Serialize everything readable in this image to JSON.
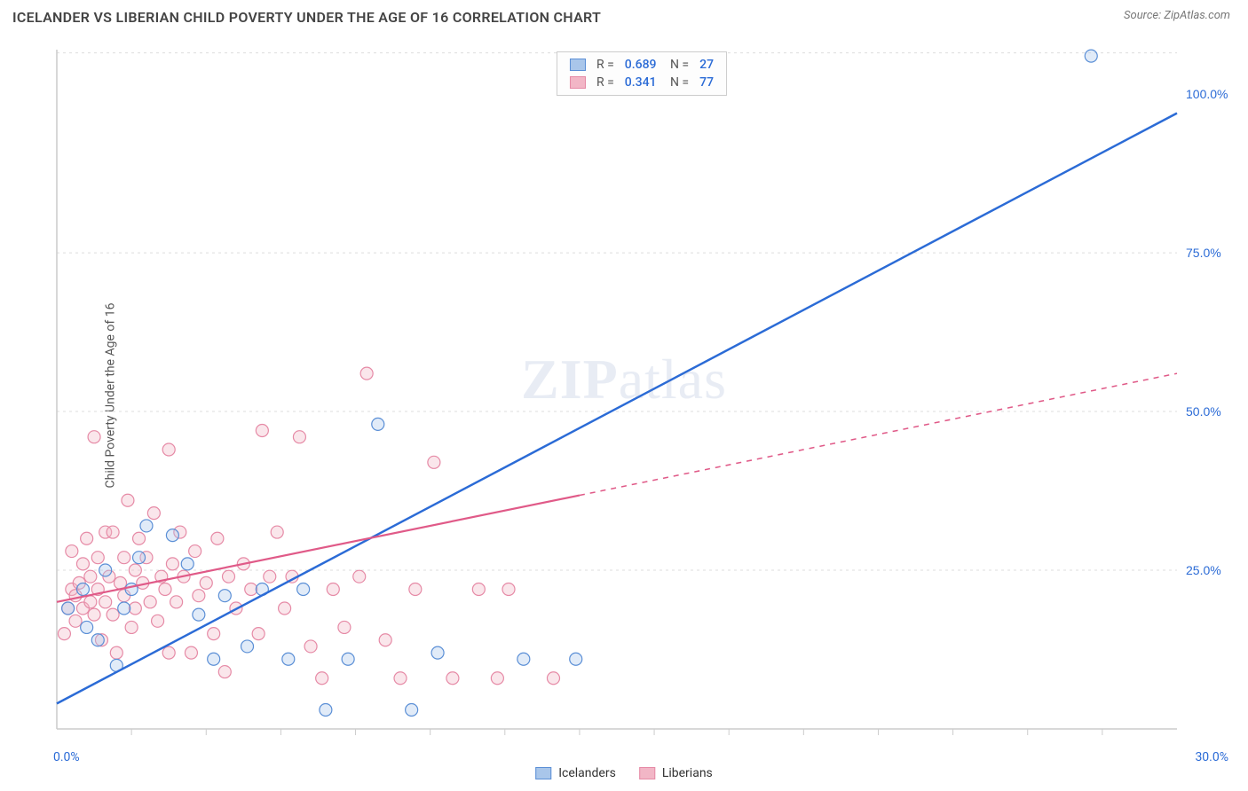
{
  "header": {
    "title": "ICELANDER VS LIBERIAN CHILD POVERTY UNDER THE AGE OF 16 CORRELATION CHART",
    "source": "Source: ZipAtlas.com"
  },
  "ylabel": "Child Poverty Under the Age of 16",
  "watermark": "ZIPatlas",
  "chart": {
    "type": "scatter",
    "xlim": [
      0,
      30
    ],
    "ylim": [
      0,
      107
    ],
    "xtick_minor": [
      2,
      4,
      6,
      8,
      10,
      12,
      14,
      16,
      18,
      20,
      22,
      24,
      26,
      28
    ],
    "xtick_labels": [
      {
        "v": 0,
        "label": "0.0%"
      },
      {
        "v": 30,
        "label": "30.0%"
      }
    ],
    "ytick_labels": [
      {
        "v": 25,
        "label": "25.0%"
      },
      {
        "v": 50,
        "label": "50.0%"
      },
      {
        "v": 75,
        "label": "75.0%"
      },
      {
        "v": 100,
        "label": "100.0%"
      }
    ],
    "gridlines_y": [
      25,
      50,
      75,
      106.5
    ],
    "background_color": "#ffffff",
    "grid_color": "#dddddd",
    "axis_color": "#cccccc",
    "marker_radius": 7,
    "marker_stroke_width": 1.2,
    "marker_fill_opacity": 0.35,
    "series": [
      {
        "name": "Icelanders",
        "color_stroke": "#5b8fd6",
        "color_fill": "#a9c6ea",
        "trend": {
          "x1": 0,
          "y1": 4,
          "x2": 30,
          "y2": 97,
          "stroke": "#2b6bd6",
          "width": 2.5,
          "solid_until_x": 30
        },
        "stats": {
          "R": "0.689",
          "N": "27"
        },
        "points": [
          [
            0.3,
            19
          ],
          [
            0.7,
            22
          ],
          [
            0.8,
            16
          ],
          [
            1.1,
            14
          ],
          [
            1.3,
            25
          ],
          [
            1.6,
            10
          ],
          [
            1.8,
            19
          ],
          [
            2.2,
            27
          ],
          [
            2.4,
            32
          ],
          [
            2.0,
            22
          ],
          [
            3.1,
            30.5
          ],
          [
            3.5,
            26
          ],
          [
            3.8,
            18
          ],
          [
            4.2,
            11
          ],
          [
            4.5,
            21
          ],
          [
            5.1,
            13
          ],
          [
            5.5,
            22
          ],
          [
            6.2,
            11
          ],
          [
            6.6,
            22
          ],
          [
            7.2,
            3
          ],
          [
            7.8,
            11
          ],
          [
            8.6,
            48
          ],
          [
            9.5,
            3
          ],
          [
            10.2,
            12
          ],
          [
            12.5,
            11
          ],
          [
            13.9,
            11
          ],
          [
            27.7,
            106
          ]
        ]
      },
      {
        "name": "Liberians",
        "color_stroke": "#e68aa6",
        "color_fill": "#f2b6c6",
        "trend": {
          "x1": 0,
          "y1": 20,
          "x2": 30,
          "y2": 56,
          "stroke": "#e05a88",
          "width": 2.2,
          "solid_until_x": 14
        },
        "stats": {
          "R": "0.341",
          "N": "77"
        },
        "points": [
          [
            0.2,
            15
          ],
          [
            0.3,
            19
          ],
          [
            0.4,
            22
          ],
          [
            0.4,
            28
          ],
          [
            0.5,
            21
          ],
          [
            0.5,
            17
          ],
          [
            0.6,
            23
          ],
          [
            0.7,
            19
          ],
          [
            0.7,
            26
          ],
          [
            0.8,
            30
          ],
          [
            0.9,
            20
          ],
          [
            0.9,
            24
          ],
          [
            1.0,
            46
          ],
          [
            1.0,
            18
          ],
          [
            1.1,
            27
          ],
          [
            1.1,
            22
          ],
          [
            1.2,
            14
          ],
          [
            1.3,
            31
          ],
          [
            1.3,
            20
          ],
          [
            1.4,
            24
          ],
          [
            1.5,
            31
          ],
          [
            1.5,
            18
          ],
          [
            1.6,
            12
          ],
          [
            1.7,
            23
          ],
          [
            1.8,
            27
          ],
          [
            1.8,
            21
          ],
          [
            1.9,
            36
          ],
          [
            2.0,
            16
          ],
          [
            2.1,
            25
          ],
          [
            2.1,
            19
          ],
          [
            2.2,
            30
          ],
          [
            2.3,
            23
          ],
          [
            2.4,
            27
          ],
          [
            2.5,
            20
          ],
          [
            2.6,
            34
          ],
          [
            2.7,
            17
          ],
          [
            2.8,
            24
          ],
          [
            2.9,
            22
          ],
          [
            3.0,
            12
          ],
          [
            3.0,
            44
          ],
          [
            3.1,
            26
          ],
          [
            3.2,
            20
          ],
          [
            3.3,
            31
          ],
          [
            3.4,
            24
          ],
          [
            3.6,
            12
          ],
          [
            3.7,
            28
          ],
          [
            3.8,
            21
          ],
          [
            4.0,
            23
          ],
          [
            4.2,
            15
          ],
          [
            4.3,
            30
          ],
          [
            4.5,
            9
          ],
          [
            4.6,
            24
          ],
          [
            4.8,
            19
          ],
          [
            5.0,
            26
          ],
          [
            5.2,
            22
          ],
          [
            5.4,
            15
          ],
          [
            5.5,
            47
          ],
          [
            5.7,
            24
          ],
          [
            5.9,
            31
          ],
          [
            6.1,
            19
          ],
          [
            6.3,
            24
          ],
          [
            6.5,
            46
          ],
          [
            6.8,
            13
          ],
          [
            7.1,
            8
          ],
          [
            7.4,
            22
          ],
          [
            7.7,
            16
          ],
          [
            8.1,
            24
          ],
          [
            8.3,
            56
          ],
          [
            8.8,
            14
          ],
          [
            9.2,
            8
          ],
          [
            9.6,
            22
          ],
          [
            10.1,
            42
          ],
          [
            10.6,
            8
          ],
          [
            11.3,
            22
          ],
          [
            11.8,
            8
          ],
          [
            12.1,
            22
          ],
          [
            13.3,
            8
          ]
        ]
      }
    ]
  },
  "legend_bottom": [
    {
      "label": "Icelanders",
      "fill": "#a9c6ea",
      "stroke": "#5b8fd6"
    },
    {
      "label": "Liberians",
      "fill": "#f2b6c6",
      "stroke": "#e68aa6"
    }
  ]
}
